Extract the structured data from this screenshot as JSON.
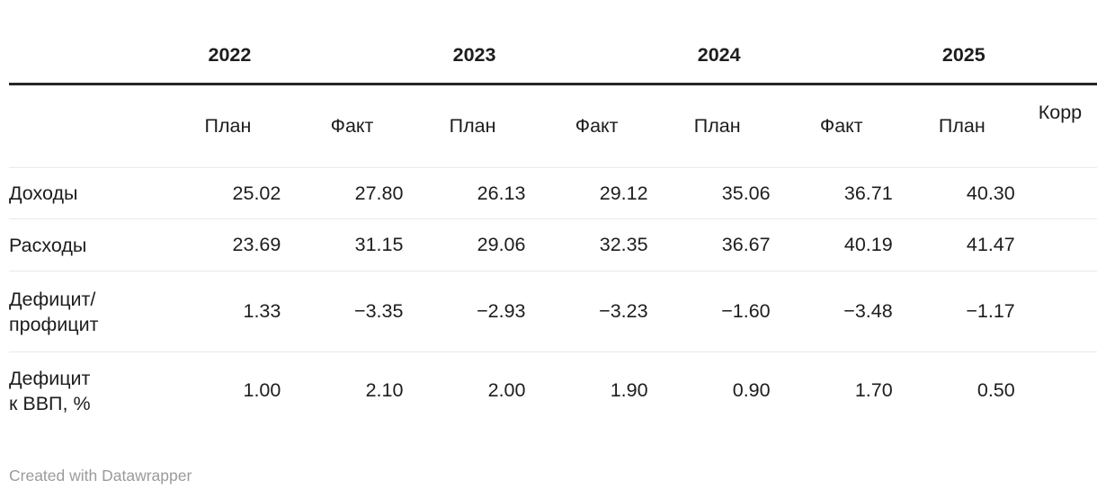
{
  "colors": {
    "text": "#1d1d1d",
    "header_rule": "#262626",
    "row_rule": "#e9e9e9",
    "footer_text": "#9b9b9b",
    "background": "#ffffff"
  },
  "chart_data": {
    "type": "table",
    "title": "",
    "years": [
      "2022",
      "2023",
      "2024",
      "2025"
    ],
    "subheaders": [
      "План",
      "Факт",
      "План",
      "Факт",
      "План",
      "Факт",
      "План",
      "Корр"
    ],
    "rows": [
      {
        "label": "Доходы",
        "values": [
          25.02,
          27.8,
          26.13,
          29.12,
          35.06,
          36.71,
          40.3,
          null
        ]
      },
      {
        "label": "Расходы",
        "values": [
          23.69,
          31.15,
          29.06,
          32.35,
          36.67,
          40.19,
          41.47,
          null
        ]
      },
      {
        "label": "Дефицит/профицит",
        "values": [
          1.33,
          -3.35,
          -2.93,
          -3.23,
          -1.6,
          -3.48,
          -1.17,
          null
        ]
      },
      {
        "label": "Дефицит к ВВП, %",
        "values": [
          1.0,
          2.1,
          2.0,
          1.9,
          0.9,
          1.7,
          0.5,
          null
        ]
      }
    ],
    "footnote": "Created with Datawrapper"
  },
  "table": {
    "year_row": [
      "",
      "2022",
      "",
      "2023",
      "",
      "2024",
      "",
      "2025",
      ""
    ],
    "header_row": [
      "",
      "План",
      "Факт",
      "План",
      "Факт",
      "План",
      "Факт",
      "План",
      "Корр"
    ],
    "rows": [
      {
        "label": "Доходы",
        "values": [
          "25.02",
          "27.80",
          "26.13",
          "29.12",
          "35.06",
          "36.71",
          "40.30",
          ""
        ]
      },
      {
        "label": "Расходы",
        "values": [
          "23.69",
          "31.15",
          "29.06",
          "32.35",
          "36.67",
          "40.19",
          "41.47",
          ""
        ]
      },
      {
        "label": "Дефицит/\nпрофицит",
        "values": [
          "1.33",
          "−3.35",
          "−2.93",
          "−3.23",
          "−1.60",
          "−3.48",
          "−1.17",
          ""
        ]
      },
      {
        "label": "Дефицит\nк ВВП, %",
        "values": [
          "1.00",
          "2.10",
          "2.00",
          "1.90",
          "0.90",
          "1.70",
          "0.50",
          ""
        ]
      }
    ]
  },
  "footer": {
    "credit": "Created with Datawrapper"
  }
}
